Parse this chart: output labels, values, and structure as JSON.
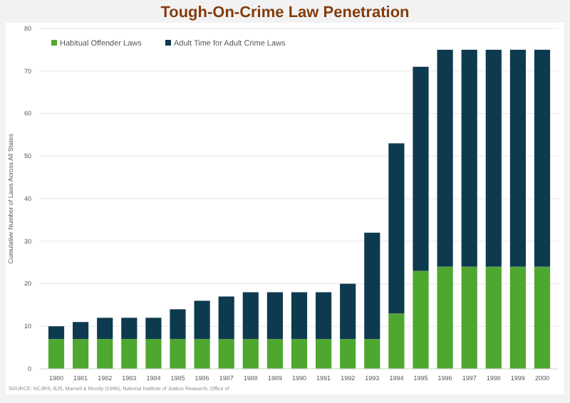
{
  "chart_data": {
    "type": "bar",
    "title": "Tough-On-Crime Law Penetration",
    "ylabel": "Cumulative Number of Laws Across All States",
    "categories": [
      "1980",
      "1981",
      "1982",
      "1983",
      "1984",
      "1985",
      "1986",
      "1987",
      "1988",
      "1989",
      "1990",
      "1991",
      "1992",
      "1993",
      "1994",
      "1995",
      "1996",
      "1997",
      "1998",
      "1999",
      "2000"
    ],
    "series": [
      {
        "name": "Habitual Offender Laws",
        "color": "#4ea72e",
        "values": [
          7,
          7,
          7,
          7,
          7,
          7,
          7,
          7,
          7,
          7,
          7,
          7,
          7,
          7,
          13,
          23,
          24,
          24,
          24,
          24,
          24
        ]
      },
      {
        "name": "Adult Time for Adult Crime Laws",
        "color": "#0e3a4f",
        "values": [
          3,
          4,
          5,
          5,
          5,
          7,
          9,
          10,
          11,
          11,
          11,
          11,
          13,
          25,
          40,
          48,
          51,
          51,
          51,
          51,
          51
        ]
      }
    ],
    "stacked": true,
    "ylim": [
      0,
      80
    ],
    "yticks": [
      0,
      10,
      20,
      30,
      40,
      50,
      60,
      70,
      80
    ],
    "grid": "y",
    "legend": "top left",
    "annotations": [
      "SOURCE: NCJRS, BJS, Marvell & Moody (1995), National Institute of Justice Research, Office of"
    ]
  }
}
